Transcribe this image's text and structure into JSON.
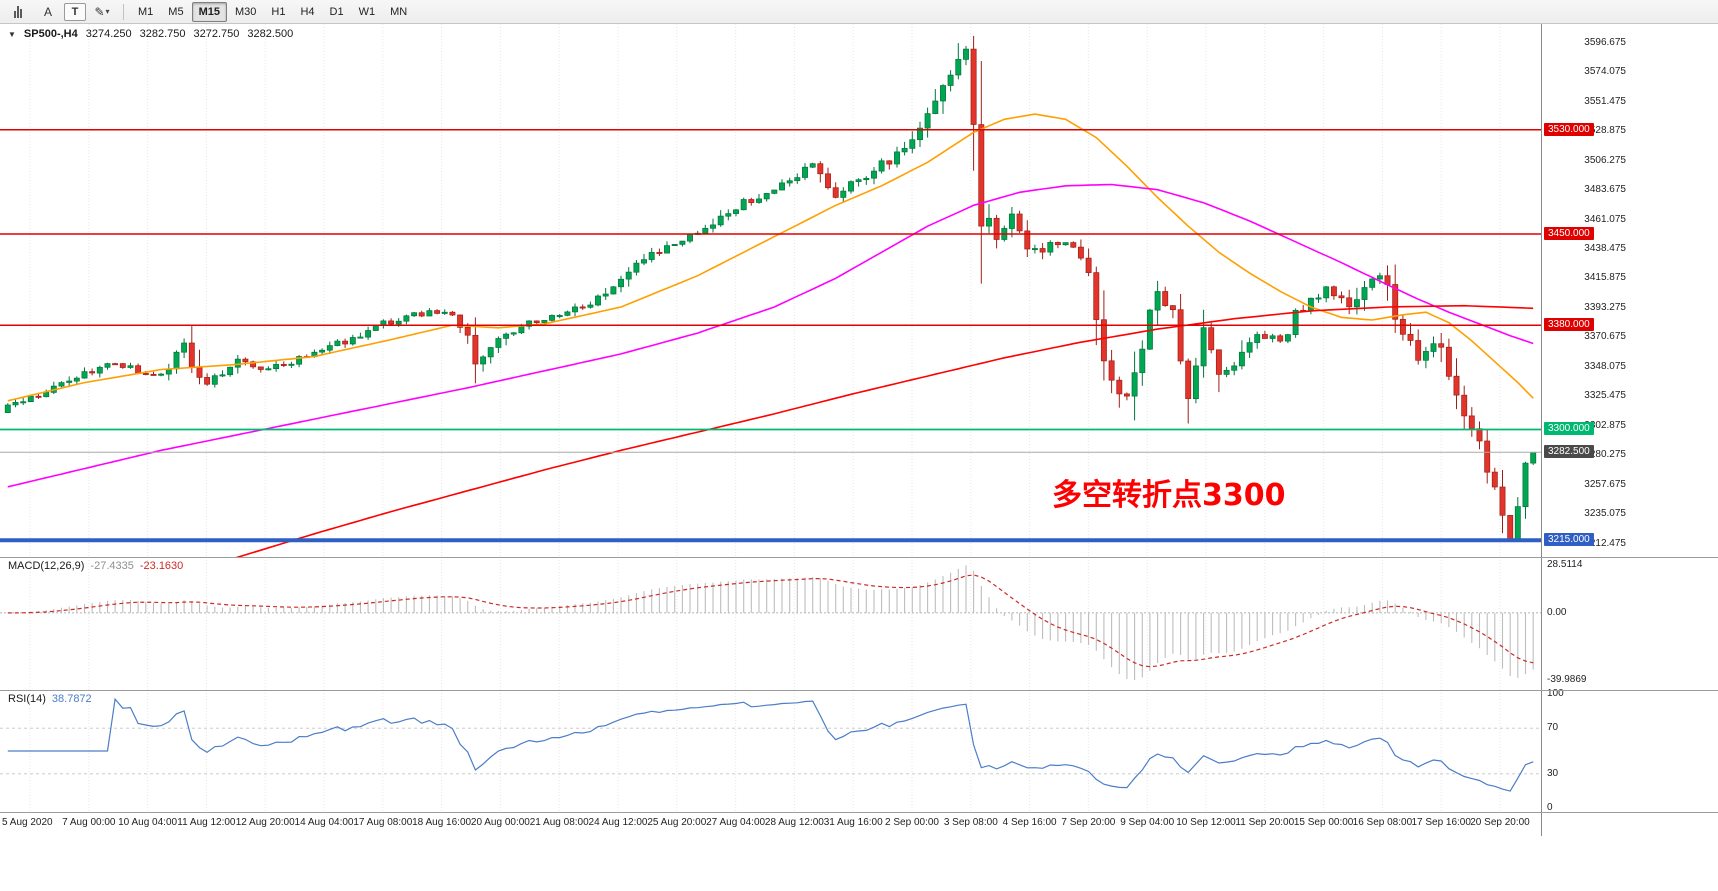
{
  "toolbar": {
    "tools": [
      {
        "name": "bar-chart-icon",
        "glyph": ""
      },
      {
        "name": "cursor-a",
        "glyph": "A"
      },
      {
        "name": "text-tool",
        "glyph": "T"
      },
      {
        "name": "draw-tools",
        "glyph": "✎",
        "dropdown": "▾"
      }
    ],
    "timeframes": [
      {
        "label": "M1",
        "active": false
      },
      {
        "label": "M5",
        "active": false
      },
      {
        "label": "M15",
        "active": true
      },
      {
        "label": "M30",
        "active": false
      },
      {
        "label": "H1",
        "active": false
      },
      {
        "label": "H4",
        "active": false
      },
      {
        "label": "D1",
        "active": false
      },
      {
        "label": "W1",
        "active": false
      },
      {
        "label": "MN",
        "active": false
      }
    ]
  },
  "chart_header": {
    "marker": "▼",
    "symbol": "SP500-,H4",
    "open": "3274.250",
    "high": "3282.750",
    "low": "3272.750",
    "close": "3282.500"
  },
  "annotation": {
    "text": "多空转折点3300",
    "color": "#FF0000"
  },
  "macd_panel": {
    "title": "MACD(12,26,9)",
    "main_value": "-27.4335",
    "signal_value": "-23.1630",
    "axis_labels": {
      "max": "28.5114",
      "zero": "0.00",
      "min": "-39.9869"
    }
  },
  "rsi_panel": {
    "title": "RSI(14)",
    "value": "38.7872",
    "axis_labels": [
      "100",
      "70",
      "30",
      "0"
    ]
  },
  "price_axis": {
    "tick_values": [
      3596.675,
      3574.075,
      3551.475,
      3528.875,
      3506.275,
      3483.675,
      3461.075,
      3438.475,
      3415.875,
      3393.275,
      3370.675,
      3348.075,
      3325.475,
      3302.875,
      3280.275,
      3257.675,
      3235.075,
      3212.475
    ]
  },
  "time_axis": {
    "labels": [
      "5 Aug 2020",
      "7 Aug 00:00",
      "10 Aug 04:00",
      "11 Aug 12:00",
      "12 Aug 20:00",
      "14 Aug 04:00",
      "17 Aug 08:00",
      "18 Aug 16:00",
      "20 Aug 00:00",
      "21 Aug 08:00",
      "24 Aug 12:00",
      "25 Aug 20:00",
      "27 Aug 04:00",
      "28 Aug 12:00",
      "31 Aug 16:00",
      "2 Sep 00:00",
      "3 Sep 08:00",
      "4 Sep 16:00",
      "7 Sep 20:00",
      "9 Sep 04:00",
      "10 Sep 12:00",
      "11 Sep 20:00",
      "15 Sep 00:00",
      "16 Sep 08:00",
      "17 Sep 16:00",
      "20 Sep 20:00"
    ]
  },
  "chart_data": {
    "type": "candlestick",
    "symbol": "SP500-",
    "timeframe": "H4",
    "bars": 200,
    "ylim": [
      3206,
      3605
    ],
    "last_candle": {
      "open": 3274.25,
      "high": 3282.75,
      "low": 3272.75,
      "close": 3282.5
    },
    "extremes": {
      "high_index": 124,
      "high": 3596.5,
      "low_index": 196,
      "low": 3216
    },
    "price_path_waypoints": [
      [
        0,
        3318
      ],
      [
        4,
        3326
      ],
      [
        8,
        3336
      ],
      [
        13,
        3352
      ],
      [
        17,
        3345
      ],
      [
        20,
        3341
      ],
      [
        23,
        3362
      ],
      [
        25,
        3331
      ],
      [
        28,
        3344
      ],
      [
        30,
        3353
      ],
      [
        33,
        3346
      ],
      [
        36,
        3350
      ],
      [
        40,
        3360
      ],
      [
        44,
        3368
      ],
      [
        49,
        3381
      ],
      [
        52,
        3386
      ],
      [
        55,
        3391
      ],
      [
        58,
        3387
      ],
      [
        60,
        3374
      ],
      [
        61,
        3348
      ],
      [
        63,
        3360
      ],
      [
        65,
        3374
      ],
      [
        68,
        3381
      ],
      [
        70,
        3386
      ],
      [
        73,
        3391
      ],
      [
        76,
        3398
      ],
      [
        79,
        3410
      ],
      [
        82,
        3426
      ],
      [
        85,
        3437
      ],
      [
        88,
        3446
      ],
      [
        91,
        3452
      ],
      [
        95,
        3470
      ],
      [
        98,
        3480
      ],
      [
        101,
        3487
      ],
      [
        103,
        3497
      ],
      [
        105,
        3505
      ],
      [
        108,
        3481
      ],
      [
        110,
        3488
      ],
      [
        112,
        3495
      ],
      [
        114,
        3503
      ],
      [
        116,
        3511
      ],
      [
        118,
        3524
      ],
      [
        120,
        3543
      ],
      [
        122,
        3568
      ],
      [
        124,
        3586
      ],
      [
        125,
        3590
      ],
      [
        126,
        3540
      ],
      [
        127,
        3480
      ],
      [
        128,
        3442
      ],
      [
        130,
        3458
      ],
      [
        131,
        3466
      ],
      [
        133,
        3444
      ],
      [
        134,
        3434
      ],
      [
        136,
        3446
      ],
      [
        138,
        3442
      ],
      [
        140,
        3430
      ],
      [
        141,
        3420
      ],
      [
        143,
        3366
      ],
      [
        144,
        3342
      ],
      [
        145,
        3310
      ],
      [
        146,
        3330
      ],
      [
        147,
        3352
      ],
      [
        149,
        3384
      ],
      [
        150,
        3400
      ],
      [
        151,
        3396
      ],
      [
        152,
        3388
      ],
      [
        153,
        3360
      ],
      [
        154,
        3336
      ],
      [
        155,
        3352
      ],
      [
        156,
        3372
      ],
      [
        157,
        3356
      ],
      [
        158,
        3340
      ],
      [
        160,
        3346
      ],
      [
        162,
        3366
      ],
      [
        163,
        3374
      ],
      [
        165,
        3370
      ],
      [
        166,
        3368
      ],
      [
        168,
        3388
      ],
      [
        169,
        3396
      ],
      [
        171,
        3402
      ],
      [
        172,
        3406
      ],
      [
        174,
        3398
      ],
      [
        175,
        3392
      ],
      [
        176,
        3402
      ],
      [
        177,
        3412
      ],
      [
        179,
        3420
      ],
      [
        180,
        3406
      ],
      [
        181,
        3388
      ],
      [
        183,
        3368
      ],
      [
        184,
        3352
      ],
      [
        185,
        3362
      ],
      [
        186,
        3372
      ],
      [
        187,
        3358
      ],
      [
        188,
        3344
      ],
      [
        189,
        3326
      ],
      [
        190,
        3310
      ],
      [
        191,
        3300
      ],
      [
        192,
        3290
      ],
      [
        193,
        3274
      ],
      [
        194,
        3258
      ],
      [
        195,
        3240
      ],
      [
        196,
        3222
      ],
      [
        197,
        3240
      ],
      [
        198,
        3262
      ],
      [
        199,
        3282.5
      ]
    ],
    "moving_averages": [
      {
        "name": "ma-fast",
        "color": "#FF9F00",
        "waypoints": [
          [
            0,
            3322
          ],
          [
            10,
            3336
          ],
          [
            20,
            3346
          ],
          [
            30,
            3350
          ],
          [
            40,
            3356
          ],
          [
            50,
            3369
          ],
          [
            58,
            3380
          ],
          [
            64,
            3378
          ],
          [
            70,
            3381
          ],
          [
            80,
            3394
          ],
          [
            90,
            3418
          ],
          [
            100,
            3448
          ],
          [
            108,
            3472
          ],
          [
            114,
            3487
          ],
          [
            120,
            3505
          ],
          [
            126,
            3528
          ],
          [
            130,
            3538
          ],
          [
            134,
            3542
          ],
          [
            138,
            3538
          ],
          [
            142,
            3524
          ],
          [
            146,
            3502
          ],
          [
            150,
            3478
          ],
          [
            154,
            3456
          ],
          [
            158,
            3436
          ],
          [
            162,
            3420
          ],
          [
            166,
            3406
          ],
          [
            170,
            3394
          ],
          [
            174,
            3386
          ],
          [
            178,
            3384
          ],
          [
            182,
            3388
          ],
          [
            185,
            3390
          ],
          [
            188,
            3382
          ],
          [
            191,
            3368
          ],
          [
            194,
            3352
          ],
          [
            197,
            3336
          ],
          [
            199,
            3324
          ]
        ]
      },
      {
        "name": "ma-medium",
        "color": "#FF00FF",
        "waypoints": [
          [
            0,
            3256
          ],
          [
            10,
            3270
          ],
          [
            20,
            3284
          ],
          [
            30,
            3296
          ],
          [
            40,
            3308
          ],
          [
            50,
            3320
          ],
          [
            60,
            3332
          ],
          [
            70,
            3345
          ],
          [
            80,
            3358
          ],
          [
            90,
            3374
          ],
          [
            100,
            3394
          ],
          [
            108,
            3416
          ],
          [
            114,
            3436
          ],
          [
            120,
            3456
          ],
          [
            126,
            3472
          ],
          [
            132,
            3482
          ],
          [
            138,
            3487
          ],
          [
            144,
            3488
          ],
          [
            150,
            3484
          ],
          [
            156,
            3474
          ],
          [
            162,
            3460
          ],
          [
            168,
            3444
          ],
          [
            174,
            3428
          ],
          [
            180,
            3411
          ],
          [
            184,
            3400
          ],
          [
            188,
            3390
          ],
          [
            192,
            3381
          ],
          [
            196,
            3372
          ],
          [
            199,
            3366
          ]
        ]
      },
      {
        "name": "ma-slow",
        "color": "#FF0000",
        "waypoints": [
          [
            0,
            3148
          ],
          [
            10,
            3166
          ],
          [
            20,
            3184
          ],
          [
            30,
            3202
          ],
          [
            40,
            3220
          ],
          [
            50,
            3237
          ],
          [
            60,
            3253
          ],
          [
            70,
            3269
          ],
          [
            80,
            3284
          ],
          [
            90,
            3298
          ],
          [
            100,
            3312
          ],
          [
            110,
            3327
          ],
          [
            120,
            3341
          ],
          [
            130,
            3355
          ],
          [
            140,
            3367
          ],
          [
            150,
            3377
          ],
          [
            160,
            3385
          ],
          [
            170,
            3391
          ],
          [
            180,
            3394
          ],
          [
            190,
            3395
          ],
          [
            199,
            3393
          ]
        ]
      }
    ],
    "levels": [
      {
        "price": 3530,
        "label": "3530.000",
        "color": "#DF0000",
        "width": 1.5
      },
      {
        "price": 3450,
        "label": "3450.000",
        "color": "#DF0000",
        "width": 1.5
      },
      {
        "price": 3380,
        "label": "3380.000",
        "color": "#DF0000",
        "width": 1.5
      },
      {
        "price": 3300,
        "label": "3300.000",
        "color": "#00B871",
        "width": 1.7
      },
      {
        "price": 3215,
        "label": "3215.000",
        "color": "#2F5FC4",
        "width": 4
      }
    ],
    "current_price": {
      "price": 3282.5,
      "label": "3282.500",
      "line_color": "#A8A8A8",
      "badge_bg": "#4A4A4A"
    },
    "candle_colors": {
      "up_fill": "#00A651",
      "up_stroke": "#00753A",
      "down_fill": "#E2342B",
      "down_stroke": "#9E1F17"
    },
    "indicators": [
      {
        "type": "MACD",
        "fast": 12,
        "slow": 26,
        "signal": 9,
        "last_main": -27.4335,
        "last_signal": -23.163,
        "scale_max": 28.5114,
        "scale_min": -39.9869,
        "histogram_color": "#BDBDBD",
        "signal_color": "#CC2A2A"
      },
      {
        "type": "RSI",
        "period": 14,
        "last": 38.7872,
        "levels": [
          70,
          30
        ],
        "line_color": "#4B7DC8"
      }
    ]
  }
}
